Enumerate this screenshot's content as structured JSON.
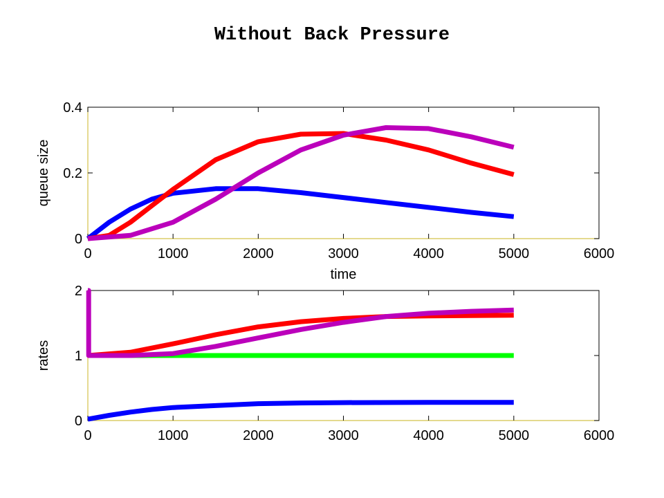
{
  "title": "Without Back Pressure",
  "chart_data": [
    {
      "type": "line",
      "title": "",
      "xlabel": "time",
      "ylabel": "queue size",
      "xlim": [
        0,
        6000
      ],
      "ylim": [
        0,
        0.4
      ],
      "xticks": [
        0,
        1000,
        2000,
        3000,
        4000,
        5000,
        6000
      ],
      "yticks": [
        0,
        0.2,
        0.4
      ],
      "xtick_labels": [
        "0",
        "1000",
        "2000",
        "3000",
        "4000",
        "5000",
        "6000"
      ],
      "ytick_labels": [
        "0",
        "0.2",
        "0.4"
      ],
      "grid": false,
      "series": [
        {
          "color": "#0000ff",
          "x": [
            0,
            250,
            500,
            750,
            1000,
            1500,
            2000,
            2500,
            3000,
            3500,
            4000,
            4500,
            5000
          ],
          "y": [
            0,
            0.05,
            0.09,
            0.12,
            0.138,
            0.152,
            0.152,
            0.14,
            0.125,
            0.11,
            0.095,
            0.08,
            0.067
          ]
        },
        {
          "color": "#ff0000",
          "x": [
            0,
            250,
            500,
            750,
            1000,
            1500,
            2000,
            2500,
            3000,
            3500,
            4000,
            4500,
            5000
          ],
          "y": [
            0,
            0.01,
            0.05,
            0.1,
            0.15,
            0.24,
            0.295,
            0.318,
            0.32,
            0.3,
            0.27,
            0.23,
            0.195
          ]
        },
        {
          "color": "#bb00bb",
          "x": [
            0,
            500,
            1000,
            1500,
            2000,
            2500,
            3000,
            3500,
            4000,
            4500,
            5000
          ],
          "y": [
            0,
            0.01,
            0.05,
            0.12,
            0.2,
            0.27,
            0.315,
            0.338,
            0.335,
            0.31,
            0.278
          ]
        }
      ]
    },
    {
      "type": "line",
      "title": "",
      "xlabel": "",
      "ylabel": "rates",
      "xlim": [
        0,
        6000
      ],
      "ylim": [
        0,
        2
      ],
      "xticks": [
        0,
        1000,
        2000,
        3000,
        4000,
        5000,
        6000
      ],
      "yticks": [
        0,
        1,
        2
      ],
      "xtick_labels": [
        "0",
        "1000",
        "2000",
        "3000",
        "4000",
        "5000",
        "6000"
      ],
      "ytick_labels": [
        "0",
        "1",
        "2"
      ],
      "grid": false,
      "series": [
        {
          "color": "#00ff00",
          "x": [
            0,
            5000
          ],
          "y": [
            1,
            1
          ]
        },
        {
          "color": "#0000ff",
          "x": [
            0,
            250,
            500,
            750,
            1000,
            1500,
            2000,
            2500,
            3000,
            4000,
            5000
          ],
          "y": [
            0.02,
            0.08,
            0.13,
            0.17,
            0.2,
            0.23,
            0.26,
            0.27,
            0.275,
            0.28,
            0.28
          ]
        },
        {
          "color": "#ff0000",
          "x": [
            0,
            500,
            1000,
            1500,
            2000,
            2500,
            3000,
            3500,
            4000,
            4500,
            5000
          ],
          "y": [
            1,
            1.05,
            1.18,
            1.32,
            1.44,
            1.52,
            1.57,
            1.6,
            1.61,
            1.615,
            1.62
          ]
        },
        {
          "color": "#bb00bb",
          "x": [
            0,
            10,
            10,
            500,
            1000,
            1500,
            2000,
            2500,
            3000,
            3500,
            4000,
            4500,
            5000
          ],
          "y": [
            2,
            2,
            1,
            1.0,
            1.03,
            1.14,
            1.27,
            1.4,
            1.51,
            1.6,
            1.65,
            1.68,
            1.7
          ]
        }
      ]
    }
  ]
}
